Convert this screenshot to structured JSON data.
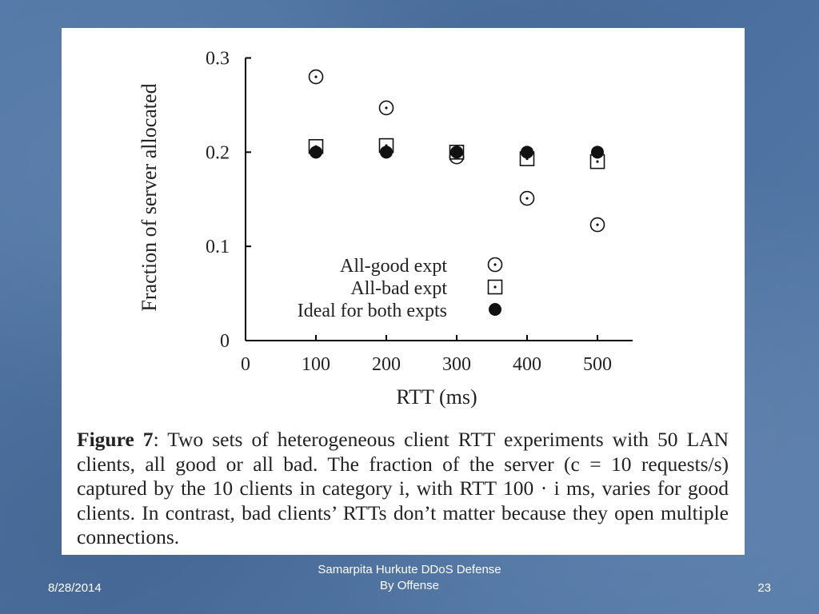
{
  "chart_data": {
    "type": "scatter",
    "xlabel": "RTT (ms)",
    "ylabel": "Fraction of server allocated",
    "xlim": [
      0,
      550
    ],
    "ylim": [
      0,
      0.3
    ],
    "x_ticks": [
      "0",
      "100",
      "200",
      "300",
      "400",
      "500"
    ],
    "y_ticks": [
      "0",
      "0.1",
      "0.2",
      "0.3"
    ],
    "x": [
      100,
      200,
      300,
      400,
      500
    ],
    "series": [
      {
        "name": "All-good expt",
        "marker": "circle-dot",
        "values": [
          0.28,
          0.247,
          0.195,
          0.151,
          0.123
        ]
      },
      {
        "name": "All-bad expt",
        "marker": "square-dot",
        "values": [
          0.206,
          0.207,
          0.2,
          0.193,
          0.19
        ]
      },
      {
        "name": "Ideal for both expts",
        "marker": "filled-circle",
        "values": [
          0.2,
          0.2,
          0.2,
          0.2,
          0.2
        ]
      }
    ],
    "legend_position": "bottom-right",
    "grid": false
  },
  "caption": {
    "label": "Figure 7",
    "text": ": Two sets of heterogeneous client RTT experiments with 50 LAN clients, all good or all bad. The fraction of the server (c = 10 requests/s) captured by the 10 clients in category i, with RTT 100 · i ms, varies for good clients. In contrast, bad clients’ RTTs don’t matter because they open multiple connections."
  },
  "footer": {
    "date": "8/28/2014",
    "title_line1": "Samarpita Hurkute DDoS Defense",
    "title_line2": "By Offense",
    "page": "23"
  }
}
